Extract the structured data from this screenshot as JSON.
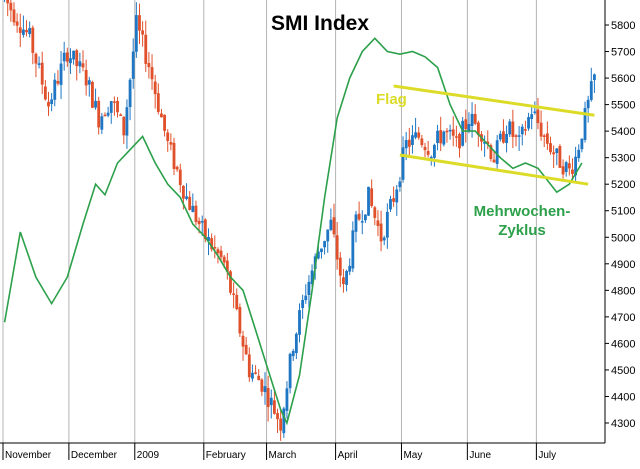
{
  "chart_data": {
    "type": "candlestick",
    "title": "SMI Index",
    "xlabel": "",
    "ylabel": "",
    "ylim": [
      4250,
      5900
    ],
    "y_ticks": [
      4300,
      4400,
      4500,
      4600,
      4700,
      4800,
      4900,
      5000,
      5100,
      5200,
      5300,
      5400,
      5500,
      5600,
      5700,
      5800
    ],
    "y_axis_side": "right",
    "grid": "vertical lines at month boundaries",
    "x_labels": [
      "November",
      "December",
      "2009",
      "February",
      "March",
      "April",
      "May",
      "June",
      "July"
    ],
    "x_label_positions": [
      0,
      21,
      42,
      64,
      84,
      106,
      127,
      148,
      170
    ],
    "n_bars": 189,
    "colors": {
      "up": "#1f77c4",
      "down": "#e0502a",
      "cycle": "#2ca04a",
      "flag": "#dcdc28"
    },
    "price_path": [
      [
        0,
        5900
      ],
      [
        8,
        5750
      ],
      [
        14,
        5500
      ],
      [
        20,
        5700
      ],
      [
        26,
        5600
      ],
      [
        30,
        5450
      ],
      [
        34,
        5520
      ],
      [
        38,
        5400
      ],
      [
        42,
        5800
      ],
      [
        46,
        5650
      ],
      [
        52,
        5350
      ],
      [
        58,
        5150
      ],
      [
        64,
        5000
      ],
      [
        70,
        4900
      ],
      [
        75,
        4650
      ],
      [
        78,
        4500
      ],
      [
        82,
        4450
      ],
      [
        86,
        4350
      ],
      [
        88,
        4300
      ],
      [
        92,
        4600
      ],
      [
        96,
        4800
      ],
      [
        100,
        4950
      ],
      [
        104,
        5050
      ],
      [
        108,
        4800
      ],
      [
        112,
        5050
      ],
      [
        116,
        5150
      ],
      [
        120,
        5000
      ],
      [
        124,
        5150
      ],
      [
        128,
        5350
      ],
      [
        132,
        5380
      ],
      [
        136,
        5330
      ],
      [
        140,
        5400
      ],
      [
        144,
        5350
      ],
      [
        148,
        5450
      ],
      [
        152,
        5400
      ],
      [
        156,
        5300
      ],
      [
        160,
        5420
      ],
      [
        164,
        5350
      ],
      [
        168,
        5480
      ],
      [
        172,
        5380
      ],
      [
        176,
        5300
      ],
      [
        180,
        5250
      ],
      [
        182,
        5300
      ],
      [
        184,
        5400
      ],
      [
        187,
        5550
      ],
      [
        188,
        5600
      ]
    ],
    "cycle_line": [
      [
        0,
        4680
      ],
      [
        5,
        5020
      ],
      [
        10,
        4850
      ],
      [
        15,
        4750
      ],
      [
        20,
        4850
      ],
      [
        25,
        5050
      ],
      [
        29,
        5200
      ],
      [
        32,
        5160
      ],
      [
        36,
        5280
      ],
      [
        40,
        5330
      ],
      [
        44,
        5380
      ],
      [
        48,
        5280
      ],
      [
        52,
        5200
      ],
      [
        56,
        5150
      ],
      [
        60,
        5050
      ],
      [
        64,
        5000
      ],
      [
        68,
        4930
      ],
      [
        72,
        4850
      ],
      [
        76,
        4800
      ],
      [
        80,
        4650
      ],
      [
        84,
        4500
      ],
      [
        88,
        4350
      ],
      [
        90,
        4300
      ],
      [
        94,
        4480
      ],
      [
        98,
        4800
      ],
      [
        102,
        5150
      ],
      [
        106,
        5450
      ],
      [
        110,
        5600
      ],
      [
        114,
        5700
      ],
      [
        118,
        5750
      ],
      [
        122,
        5700
      ],
      [
        126,
        5690
      ],
      [
        130,
        5700
      ],
      [
        134,
        5680
      ],
      [
        138,
        5640
      ],
      [
        142,
        5500
      ],
      [
        146,
        5400
      ],
      [
        150,
        5400
      ],
      [
        154,
        5350
      ],
      [
        158,
        5300
      ],
      [
        162,
        5260
      ],
      [
        166,
        5280
      ],
      [
        170,
        5260
      ],
      [
        174,
        5200
      ],
      [
        176,
        5170
      ],
      [
        180,
        5200
      ],
      [
        184,
        5280
      ]
    ],
    "flag_upper": [
      [
        124,
        5570
      ],
      [
        188,
        5460
      ]
    ],
    "flag_lower": [
      [
        126,
        5310
      ],
      [
        186,
        5200
      ]
    ],
    "annotations": [
      {
        "text": "Flag",
        "color": "#dcdc28"
      },
      {
        "text": "Mehrwochen-",
        "color": "#2ca04a"
      },
      {
        "text": "Zyklus",
        "color": "#2ca04a"
      }
    ]
  }
}
